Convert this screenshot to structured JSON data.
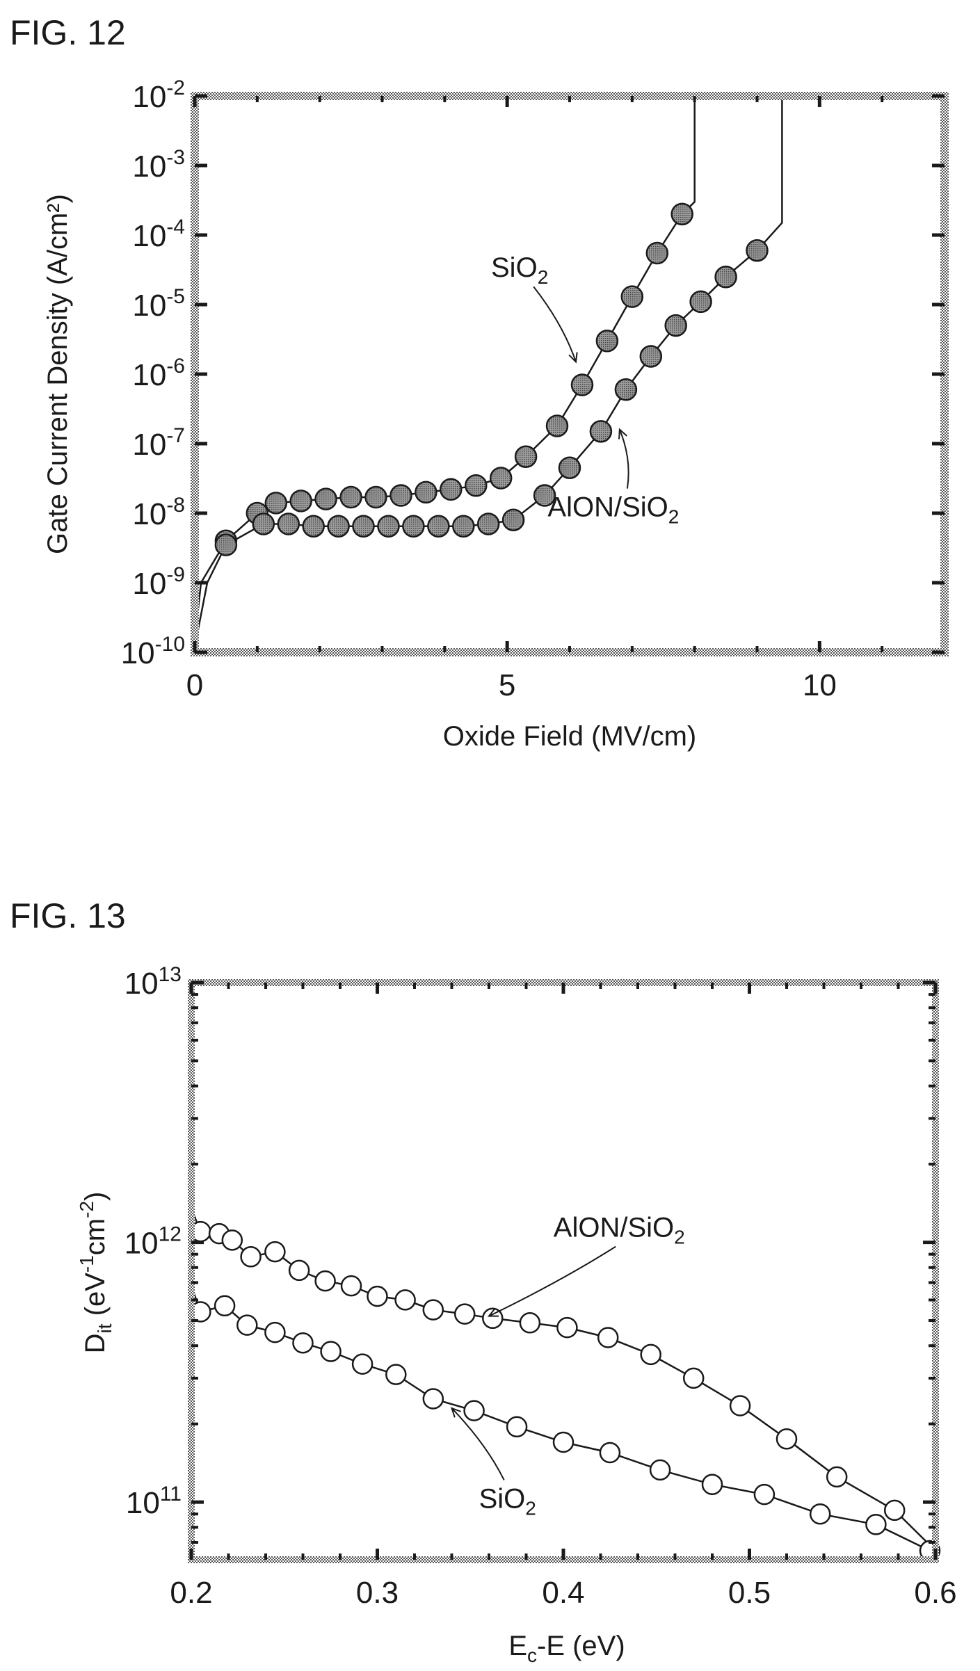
{
  "colors": {
    "ink": "#1a1a1a",
    "frame_hatch": "#555555",
    "fig12_marker": "#777777",
    "fig13_marker": "#ffffff"
  },
  "chart_data": [
    {
      "id": "fig12",
      "figure_label": "FIG. 12",
      "type": "line",
      "title": "",
      "xlabel": "Oxide Field (MV/cm)",
      "ylabel": "Gate Current Density (A/cm²)",
      "xlim": [
        0,
        12
      ],
      "ylim": [
        1e-10,
        0.01
      ],
      "yscale": "log",
      "grid": false,
      "x_ticks": [
        {
          "value": 0,
          "label": "0"
        },
        {
          "value": 5,
          "label": "5"
        },
        {
          "value": 10,
          "label": "10"
        }
      ],
      "y_ticks": [
        {
          "value": 1e-10,
          "base": "10",
          "exp": "-10"
        },
        {
          "value": 1e-09,
          "base": "10",
          "exp": "-9"
        },
        {
          "value": 1e-08,
          "base": "10",
          "exp": "-8"
        },
        {
          "value": 1e-07,
          "base": "10",
          "exp": "-7"
        },
        {
          "value": 1e-06,
          "base": "10",
          "exp": "-6"
        },
        {
          "value": 1e-05,
          "base": "10",
          "exp": "-5"
        },
        {
          "value": 0.0001,
          "base": "10",
          "exp": "-4"
        },
        {
          "value": 0.001,
          "base": "10",
          "exp": "-3"
        },
        {
          "value": 0.01,
          "base": "10",
          "exp": "-2"
        }
      ],
      "marker": "filled-circle",
      "series": [
        {
          "key": "sio2",
          "x": [
            0.5,
            1.0,
            1.3,
            1.7,
            2.1,
            2.5,
            2.9,
            3.3,
            3.7,
            4.1,
            4.5,
            4.9,
            5.3,
            5.8,
            6.2,
            6.6,
            7.0,
            7.4,
            7.8
          ],
          "y": [
            4e-09,
            1e-08,
            1.4e-08,
            1.5e-08,
            1.6e-08,
            1.7e-08,
            1.7e-08,
            1.8e-08,
            2e-08,
            2.2e-08,
            2.5e-08,
            3.2e-08,
            6.5e-08,
            1.8e-07,
            7e-07,
            3e-06,
            1.3e-05,
            5.5e-05,
            0.0002
          ],
          "line": [
            [
              0.0,
              1.5e-10
            ],
            [
              0.1,
              1e-09
            ],
            [
              0.5,
              4e-09
            ],
            [
              1.0,
              1e-08
            ],
            [
              1.3,
              1.4e-08
            ],
            [
              1.7,
              1.5e-08
            ],
            [
              2.1,
              1.6e-08
            ],
            [
              2.5,
              1.7e-08
            ],
            [
              2.9,
              1.7e-08
            ],
            [
              3.3,
              1.8e-08
            ],
            [
              3.7,
              2e-08
            ],
            [
              4.1,
              2.2e-08
            ],
            [
              4.5,
              2.5e-08
            ],
            [
              4.9,
              3.2e-08
            ],
            [
              5.3,
              6.5e-08
            ],
            [
              5.8,
              1.8e-07
            ],
            [
              6.2,
              7e-07
            ],
            [
              6.6,
              3e-06
            ],
            [
              7.0,
              1.3e-05
            ],
            [
              7.4,
              5.5e-05
            ],
            [
              7.8,
              0.0002
            ],
            [
              8.0,
              0.0003
            ],
            [
              8.0,
              0.01
            ]
          ]
        },
        {
          "key": "alon_sio2",
          "x": [
            0.5,
            1.1,
            1.5,
            1.9,
            2.3,
            2.7,
            3.1,
            3.5,
            3.9,
            4.3,
            4.7,
            5.1,
            5.6,
            6.0,
            6.5,
            6.9,
            7.3,
            7.7,
            8.1,
            8.5,
            9.0
          ],
          "y": [
            3.5e-09,
            7e-09,
            7e-09,
            6.5e-09,
            6.5e-09,
            6.5e-09,
            6.5e-09,
            6.5e-09,
            6.5e-09,
            6.5e-09,
            7e-09,
            8e-09,
            1.8e-08,
            4.5e-08,
            1.5e-07,
            6e-07,
            1.8e-06,
            5e-06,
            1.1e-05,
            2.5e-05,
            6e-05
          ],
          "line": [
            [
              0.0,
              1.2e-10
            ],
            [
              0.2,
              1e-09
            ],
            [
              0.5,
              3.5e-09
            ],
            [
              1.1,
              7e-09
            ],
            [
              1.5,
              7e-09
            ],
            [
              1.9,
              6.5e-09
            ],
            [
              2.3,
              6.5e-09
            ],
            [
              2.7,
              6.5e-09
            ],
            [
              3.1,
              6.5e-09
            ],
            [
              3.5,
              6.5e-09
            ],
            [
              3.9,
              6.5e-09
            ],
            [
              4.3,
              6.5e-09
            ],
            [
              4.7,
              7e-09
            ],
            [
              5.1,
              8e-09
            ],
            [
              5.6,
              1.8e-08
            ],
            [
              6.0,
              4.5e-08
            ],
            [
              6.5,
              1.5e-07
            ],
            [
              6.9,
              6e-07
            ],
            [
              7.3,
              1.8e-06
            ],
            [
              7.7,
              5e-06
            ],
            [
              8.1,
              1.1e-05
            ],
            [
              8.5,
              2.5e-05
            ],
            [
              9.0,
              6e-05
            ],
            [
              9.4,
              0.00015
            ],
            [
              9.4,
              0.01
            ]
          ]
        }
      ],
      "annotations": [
        {
          "series": "sio2",
          "text": "SiO",
          "sub": "2",
          "text_at": [
            5.2,
            2.5e-05
          ],
          "arrow_to": [
            6.1,
            1.5e-06
          ]
        },
        {
          "series": "alon_sio2",
          "text": "AlON/SiO",
          "sub": "2",
          "text_at": [
            6.7,
            9e-09
          ],
          "arrow_to": [
            6.8,
            1.6e-07
          ]
        }
      ]
    },
    {
      "id": "fig13",
      "figure_label": "FIG. 13",
      "type": "line",
      "title": "",
      "xlabel_main": "E",
      "xlabel_sub": "c",
      "xlabel_rest": "-E (eV)",
      "ylabel_main": "D",
      "ylabel_sub": "it",
      "ylabel_rest": " (eV",
      "ylabel_sup1": "-1",
      "ylabel_mid": "cm",
      "ylabel_sup2": "-2",
      "ylabel_end": ")",
      "xlim": [
        0.2,
        0.6
      ],
      "ylim": [
        60000000000.0,
        10000000000000.0
      ],
      "yscale": "log",
      "grid": false,
      "x_ticks": [
        {
          "value": 0.2,
          "label": "0.2"
        },
        {
          "value": 0.3,
          "label": "0.3"
        },
        {
          "value": 0.4,
          "label": "0.4"
        },
        {
          "value": 0.5,
          "label": "0.5"
        },
        {
          "value": 0.6,
          "label": "0.6"
        }
      ],
      "y_ticks": [
        {
          "value": 100000000000.0,
          "base": "10",
          "exp": "11"
        },
        {
          "value": 1000000000000.0,
          "base": "10",
          "exp": "12"
        },
        {
          "value": 10000000000000.0,
          "base": "10",
          "exp": "13"
        }
      ],
      "marker": "open-circle",
      "series": [
        {
          "key": "alon_sio2",
          "x": [
            0.205,
            0.215,
            0.222,
            0.232,
            0.245,
            0.258,
            0.272,
            0.286,
            0.3,
            0.315,
            0.33,
            0.347,
            0.362,
            0.382,
            0.402,
            0.424,
            0.447,
            0.47,
            0.495,
            0.52,
            0.547,
            0.578
          ],
          "y": [
            1100000000000.0,
            1080000000000.0,
            1020000000000.0,
            880000000000.0,
            920000000000.0,
            780000000000.0,
            710000000000.0,
            680000000000.0,
            620000000000.0,
            600000000000.0,
            550000000000.0,
            530000000000.0,
            510000000000.0,
            490000000000.0,
            470000000000.0,
            430000000000.0,
            370000000000.0,
            300000000000.0,
            235000000000.0,
            175000000000.0,
            125000000000.0,
            93000000000.0
          ],
          "line": [
            [
              0.2,
              1350000000000.0
            ],
            [
              0.205,
              1100000000000.0
            ],
            [
              0.215,
              1080000000000.0
            ],
            [
              0.222,
              1020000000000.0
            ],
            [
              0.232,
              880000000000.0
            ],
            [
              0.245,
              920000000000.0
            ],
            [
              0.258,
              780000000000.0
            ],
            [
              0.272,
              710000000000.0
            ],
            [
              0.286,
              680000000000.0
            ],
            [
              0.3,
              620000000000.0
            ],
            [
              0.315,
              600000000000.0
            ],
            [
              0.33,
              550000000000.0
            ],
            [
              0.347,
              530000000000.0
            ],
            [
              0.362,
              510000000000.0
            ],
            [
              0.382,
              490000000000.0
            ],
            [
              0.402,
              470000000000.0
            ],
            [
              0.424,
              430000000000.0
            ],
            [
              0.447,
              370000000000.0
            ],
            [
              0.47,
              300000000000.0
            ],
            [
              0.495,
              235000000000.0
            ],
            [
              0.52,
              175000000000.0
            ],
            [
              0.547,
              125000000000.0
            ],
            [
              0.578,
              93000000000.0
            ],
            [
              0.6,
              65000000000.0
            ]
          ]
        },
        {
          "key": "sio2",
          "x": [
            0.205,
            0.218,
            0.23,
            0.245,
            0.26,
            0.275,
            0.292,
            0.31,
            0.33,
            0.352,
            0.375,
            0.4,
            0.425,
            0.452,
            0.48,
            0.508,
            0.538,
            0.568,
            0.597
          ],
          "y": [
            540000000000.0,
            570000000000.0,
            480000000000.0,
            450000000000.0,
            410000000000.0,
            380000000000.0,
            340000000000.0,
            310000000000.0,
            250000000000.0,
            225000000000.0,
            195000000000.0,
            170000000000.0,
            155000000000.0,
            133000000000.0,
            117000000000.0,
            107000000000.0,
            90000000000.0,
            82000000000.0,
            65000000000.0
          ],
          "line": [
            [
              0.2,
              680000000000.0
            ],
            [
              0.205,
              540000000000.0
            ],
            [
              0.218,
              570000000000.0
            ],
            [
              0.23,
              480000000000.0
            ],
            [
              0.245,
              450000000000.0
            ],
            [
              0.26,
              410000000000.0
            ],
            [
              0.275,
              380000000000.0
            ],
            [
              0.292,
              340000000000.0
            ],
            [
              0.31,
              310000000000.0
            ],
            [
              0.33,
              250000000000.0
            ],
            [
              0.352,
              225000000000.0
            ],
            [
              0.375,
              195000000000.0
            ],
            [
              0.4,
              170000000000.0
            ],
            [
              0.425,
              155000000000.0
            ],
            [
              0.452,
              133000000000.0
            ],
            [
              0.48,
              117000000000.0
            ],
            [
              0.508,
              107000000000.0
            ],
            [
              0.538,
              90000000000.0
            ],
            [
              0.568,
              82000000000.0
            ],
            [
              0.597,
              65000000000.0
            ]
          ]
        }
      ],
      "annotations": [
        {
          "series": "alon_sio2",
          "text": "AlON/SiO",
          "sub": "2",
          "text_at": [
            0.43,
            1050000000000.0
          ],
          "arrow_to": [
            0.36,
            520000000000.0
          ]
        },
        {
          "series": "sio2",
          "text": "SiO",
          "sub": "2",
          "text_at": [
            0.37,
            95000000000.0
          ],
          "arrow_to": [
            0.34,
            230000000000.0
          ]
        }
      ]
    }
  ]
}
